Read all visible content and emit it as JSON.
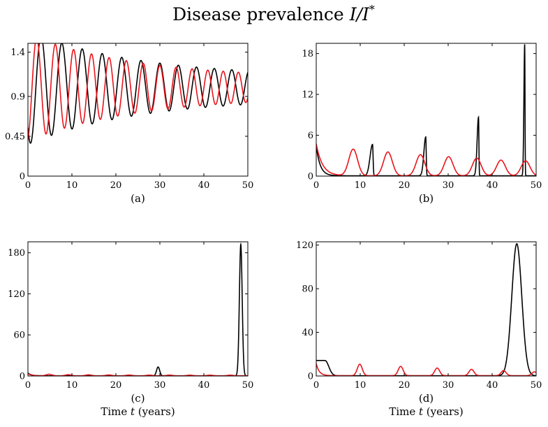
{
  "figure": {
    "title_main": "Disease prevalence ",
    "title_math": "I/I",
    "title_sup": "*",
    "xlabel_prefix": "Time ",
    "xlabel_var": "t",
    "xlabel_suffix": " (years)"
  },
  "colors": {
    "series_a": "#000000",
    "series_b": "#e8141b"
  },
  "chart_data": [
    {
      "type": "line",
      "panel": "(a)",
      "xlim": [
        0,
        50
      ],
      "ylim": [
        0,
        1.5
      ],
      "xticks": [
        0,
        10,
        20,
        30,
        40,
        50
      ],
      "yticks": [
        0,
        0.45,
        0.9,
        1.4
      ],
      "ytick_labels": [
        "0",
        "0.45",
        "0.9",
        "1.4"
      ],
      "grid": false,
      "gen": "damped",
      "series": [
        {
          "color": "#000000",
          "params": {
            "a0": 0.52,
            "tau": 25,
            "P0": 4.8,
            "Pk": -0.01,
            "t0": 3.0,
            "c": 1.0,
            "a1": 0.12
          }
        },
        {
          "color": "#e8141b",
          "params": {
            "a0": 0.5,
            "tau": 25,
            "P0": 4.3,
            "Pk": -0.01,
            "t0": 2.0,
            "c": 1.0,
            "a1": 0.1
          }
        }
      ],
      "xlabel": ""
    },
    {
      "type": "line",
      "panel": "(b)",
      "xlim": [
        0,
        50
      ],
      "ylim": [
        0,
        19.5
      ],
      "xticks": [
        0,
        10,
        20,
        30,
        40,
        50
      ],
      "yticks": [
        0,
        6,
        12,
        18
      ],
      "ytick_labels": [
        "0",
        "6",
        "12",
        "18"
      ],
      "grid": false,
      "gen": "peaks",
      "series": [
        {
          "color": "#000000",
          "base": 0.05,
          "initial": {
            "y0": 4.4,
            "decay": 0.9
          },
          "peaks": [
            {
              "t": 12.8,
              "h": 4.6,
              "w": 0.8,
              "w2": 0.18
            },
            {
              "t": 24.9,
              "h": 5.7,
              "w": 0.6,
              "w2": 0.15
            },
            {
              "t": 36.9,
              "h": 8.6,
              "w": 0.45,
              "w2": 0.12
            },
            {
              "t": 47.4,
              "h": 19.3,
              "w": 0.25,
              "w2": 0.1
            }
          ]
        },
        {
          "color": "#e8141b",
          "base": 0.05,
          "initial": {
            "y0": 4.7,
            "decay": 1.4
          },
          "peaks": [
            {
              "t": 8.4,
              "h": 3.9,
              "w": 1.4
            },
            {
              "t": 16.3,
              "h": 3.5,
              "w": 1.4
            },
            {
              "t": 23.7,
              "h": 3.1,
              "w": 1.4
            },
            {
              "t": 30.1,
              "h": 2.8,
              "w": 1.4
            },
            {
              "t": 36.5,
              "h": 2.6,
              "w": 1.4
            },
            {
              "t": 42.0,
              "h": 2.3,
              "w": 1.4
            },
            {
              "t": 47.6,
              "h": 2.2,
              "w": 1.4
            }
          ]
        }
      ],
      "xlabel": ""
    },
    {
      "type": "line",
      "panel": "(c)",
      "xlim": [
        0,
        50
      ],
      "ylim": [
        0,
        196
      ],
      "xticks": [
        0,
        10,
        20,
        30,
        40,
        50
      ],
      "yticks": [
        0,
        60,
        120,
        180
      ],
      "ytick_labels": [
        "0",
        "60",
        "120",
        "180"
      ],
      "grid": false,
      "gen": "peaks",
      "series": [
        {
          "color": "#000000",
          "base": 0.2,
          "initial": {
            "y0": 4.0,
            "decay": 0.8
          },
          "peaks": [
            {
              "t": 29.6,
              "h": 13,
              "w": 0.5
            },
            {
              "t": 48.4,
              "h": 192,
              "w": 0.45
            }
          ]
        },
        {
          "color": "#e8141b",
          "base": 0.3,
          "initial": {
            "y0": 3.0,
            "decay": 0.8
          },
          "peaks": [
            {
              "t": 4.8,
              "h": 2.2,
              "w": 0.9
            },
            {
              "t": 9.2,
              "h": 1.6,
              "w": 0.9
            },
            {
              "t": 13.8,
              "h": 1.4,
              "w": 0.9
            },
            {
              "t": 18.4,
              "h": 1.2,
              "w": 0.9
            },
            {
              "t": 23.0,
              "h": 1.1,
              "w": 0.9
            },
            {
              "t": 27.6,
              "h": 1.0,
              "w": 0.9
            },
            {
              "t": 32.2,
              "h": 1.0,
              "w": 0.9
            },
            {
              "t": 36.8,
              "h": 0.9,
              "w": 0.9
            },
            {
              "t": 41.4,
              "h": 0.9,
              "w": 0.9
            },
            {
              "t": 46.0,
              "h": 0.9,
              "w": 0.9
            }
          ]
        }
      ],
      "xlabel": "Time t (years)"
    },
    {
      "type": "line",
      "panel": "(d)",
      "xlim": [
        0,
        50
      ],
      "ylim": [
        0,
        123
      ],
      "xticks": [
        0,
        10,
        20,
        30,
        40,
        50
      ],
      "yticks": [
        0,
        40,
        80,
        120
      ],
      "ytick_labels": [
        "0",
        "40",
        "80",
        "120"
      ],
      "grid": false,
      "gen": "peaks",
      "series": [
        {
          "color": "#000000",
          "base": 0.2,
          "plateau": {
            "y0": 14,
            "t_end": 2.0,
            "fall": 1.2
          },
          "peaks": [
            {
              "t": 45.6,
              "h": 121,
              "w": 1.6
            }
          ]
        },
        {
          "color": "#e8141b",
          "base": 0.3,
          "initial": {
            "y0": 11,
            "decay": 0.7
          },
          "peaks": [
            {
              "t": 9.9,
              "h": 10.5,
              "w": 0.8
            },
            {
              "t": 19.2,
              "h": 8.5,
              "w": 0.8
            },
            {
              "t": 27.5,
              "h": 7.0,
              "w": 0.8
            },
            {
              "t": 35.3,
              "h": 5.8,
              "w": 0.8
            },
            {
              "t": 42.6,
              "h": 4.7,
              "w": 0.8
            },
            {
              "t": 49.6,
              "h": 3.5,
              "w": 0.8
            }
          ]
        }
      ],
      "xlabel": "Time t (years)"
    }
  ]
}
